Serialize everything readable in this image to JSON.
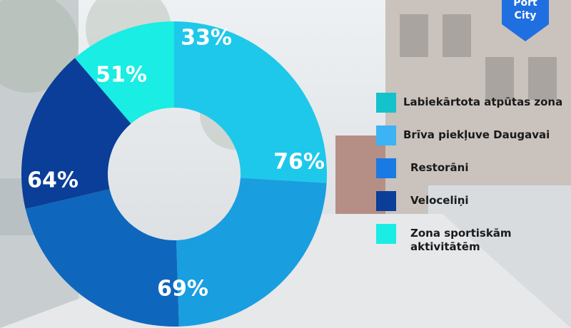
{
  "brand": {
    "logo_lines": [
      "Port",
      "City"
    ],
    "logo_color": "#1f6fe0"
  },
  "chart_data": {
    "type": "pie",
    "segments": [
      {
        "label": "76%",
        "value": 76,
        "color": "#1ec8ea"
      },
      {
        "label": "69%",
        "value": 69,
        "color": "#199ee0"
      },
      {
        "label": "64%",
        "value": 64,
        "color": "#0f67bd"
      },
      {
        "label": "51%",
        "value": 51,
        "color": "#0a3e98"
      },
      {
        "label": "33%",
        "value": 33,
        "color": "#19ede4"
      }
    ],
    "legend": [
      {
        "label": "Labiekārtota atpūtas zona",
        "color": "#14c2cc"
      },
      {
        "label": "Brīva piekļuve Daugavai",
        "color": "#3bb3f4"
      },
      {
        "label": "Restorāni",
        "color": "#1a7ae4"
      },
      {
        "label": "Veloceliņi",
        "color": "#0a3e98"
      },
      {
        "label": "Zona sportiskām\naktivitātēm",
        "color": "#19ede4"
      }
    ],
    "legend_position": "right"
  }
}
